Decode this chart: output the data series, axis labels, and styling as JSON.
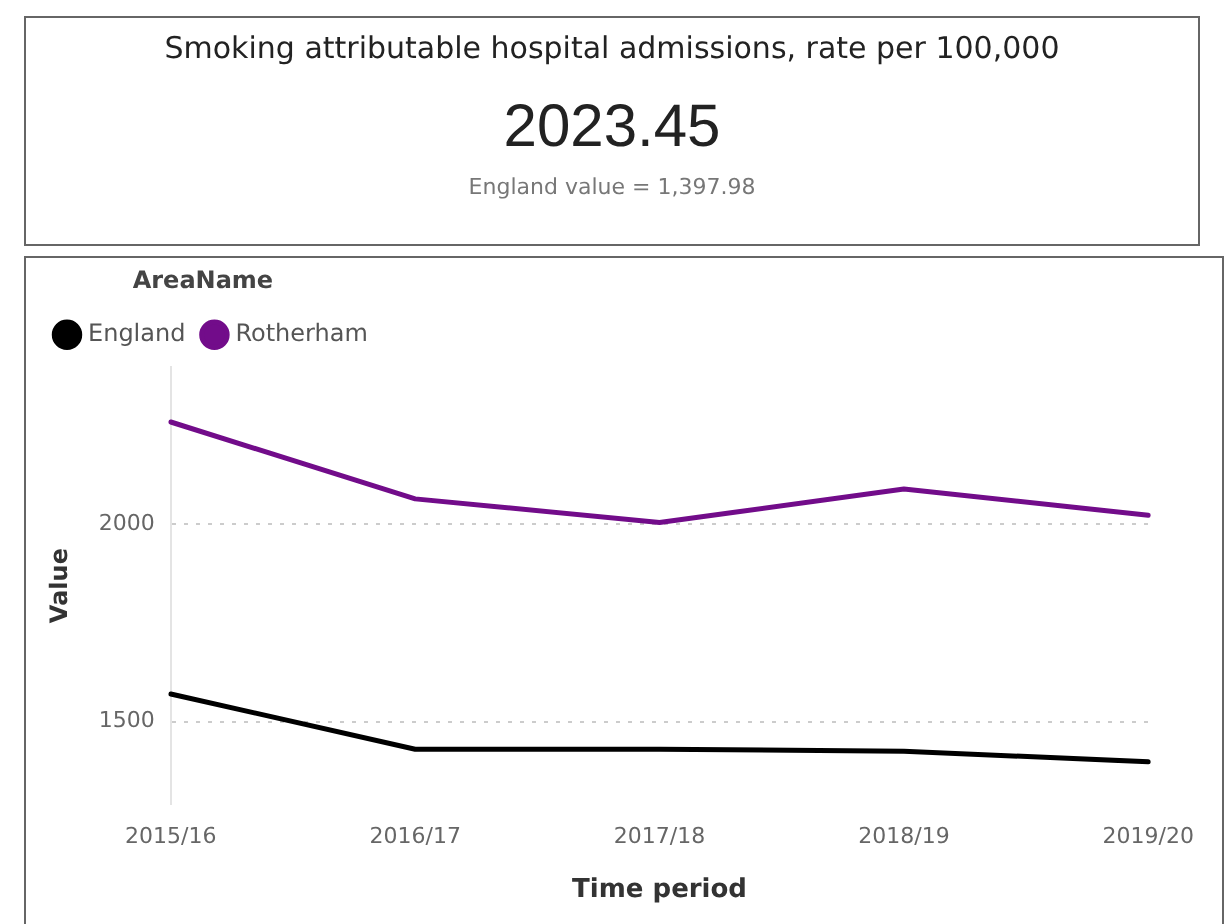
{
  "chart_data": [
    {
      "type": "other",
      "title": "Smoking attributable hospital admissions, rate per 100,000",
      "annotations": [
        "2023.45",
        "England value = 1,397.98"
      ]
    },
    {
      "type": "line",
      "xlabel": "Time period",
      "ylabel": "Value",
      "legend_title": "AreaName",
      "legend": "top left",
      "grid": "y",
      "marker": "none",
      "line_style": "solid",
      "categories": [
        "2015/16",
        "2016/17",
        "2017/18",
        "2018/19",
        "2019/20"
      ],
      "ylim": [
        1290,
        2400
      ],
      "yticks": [
        1500,
        2000
      ],
      "series": [
        {
          "name": "England",
          "color": "#000000",
          "values": [
            1570,
            1430,
            1430,
            1425,
            1397.98
          ]
        },
        {
          "name": "Rotherham",
          "color": "#720c8a",
          "values": [
            2260,
            2065,
            2005,
            2090,
            2023.45
          ]
        }
      ]
    }
  ]
}
